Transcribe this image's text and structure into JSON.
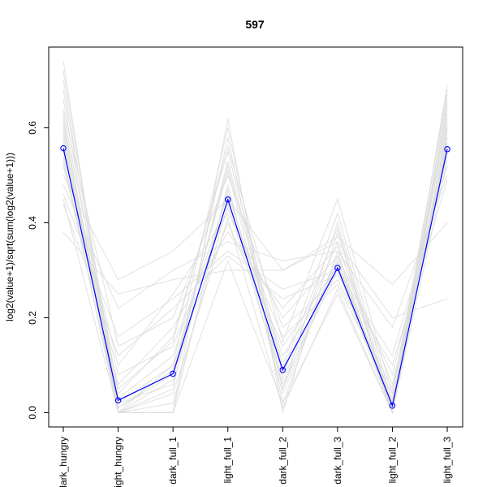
{
  "chart_data": {
    "type": "line",
    "title": "597",
    "xlabel": "",
    "ylabel": "log2(value+1)/sqrt(sum(log2(value+1)))",
    "categories": [
      "dark_hungry",
      "light_hungry",
      "dark_full_1",
      "light_full_1",
      "dark_full_2",
      "dark_full_3",
      "light_full_2",
      "light_full_3"
    ],
    "ylim": [
      -0.03,
      0.77
    ],
    "yticks": [
      0.0,
      0.2,
      0.4,
      0.6
    ],
    "ytick_labels": [
      "0.0",
      "0.2",
      "0.4",
      "0.6"
    ],
    "grid": false,
    "highlight_color": "#0000ff",
    "background_line_color": "#dcdcdc",
    "highlight": {
      "values": [
        0.557,
        0.026,
        0.082,
        0.449,
        0.09,
        0.305,
        0.015,
        0.555
      ]
    },
    "background_series": [
      {
        "values": [
          0.74,
          0.0,
          0.0,
          0.62,
          0.0,
          0.38,
          0.0,
          0.69
        ]
      },
      {
        "values": [
          0.72,
          0.02,
          0.1,
          0.6,
          0.05,
          0.4,
          0.01,
          0.68
        ]
      },
      {
        "values": [
          0.7,
          0.0,
          0.05,
          0.58,
          0.02,
          0.34,
          0.0,
          0.66
        ]
      },
      {
        "values": [
          0.68,
          0.04,
          0.16,
          0.55,
          0.1,
          0.42,
          0.02,
          0.65
        ]
      },
      {
        "values": [
          0.66,
          0.01,
          0.08,
          0.52,
          0.08,
          0.36,
          0.01,
          0.64
        ]
      },
      {
        "values": [
          0.64,
          0.14,
          0.2,
          0.5,
          0.18,
          0.28,
          0.05,
          0.62
        ]
      },
      {
        "values": [
          0.62,
          0.0,
          0.0,
          0.48,
          0.04,
          0.32,
          0.0,
          0.6
        ]
      },
      {
        "values": [
          0.6,
          0.03,
          0.12,
          0.46,
          0.12,
          0.3,
          0.02,
          0.59
        ]
      },
      {
        "values": [
          0.58,
          0.0,
          0.02,
          0.44,
          0.06,
          0.3,
          0.0,
          0.58
        ]
      },
      {
        "values": [
          0.56,
          0.1,
          0.25,
          0.42,
          0.2,
          0.33,
          0.08,
          0.56
        ]
      },
      {
        "values": [
          0.54,
          0.0,
          0.1,
          0.4,
          0.14,
          0.31,
          0.03,
          0.55
        ]
      },
      {
        "values": [
          0.52,
          0.06,
          0.18,
          0.38,
          0.22,
          0.35,
          0.06,
          0.54
        ]
      },
      {
        "values": [
          0.5,
          0.28,
          0.34,
          0.45,
          0.3,
          0.37,
          0.27,
          0.4
        ]
      },
      {
        "values": [
          0.48,
          0.22,
          0.3,
          0.36,
          0.32,
          0.34,
          0.18,
          0.5
        ]
      },
      {
        "values": [
          0.46,
          0.16,
          0.24,
          0.34,
          0.26,
          0.3,
          0.12,
          0.52
        ]
      },
      {
        "values": [
          0.45,
          0.0,
          0.0,
          0.32,
          0.02,
          0.25,
          0.0,
          0.53
        ]
      },
      {
        "values": [
          0.44,
          0.12,
          0.22,
          0.33,
          0.24,
          0.29,
          0.1,
          0.49
        ]
      },
      {
        "values": [
          0.38,
          0.25,
          0.28,
          0.3,
          0.3,
          0.36,
          0.2,
          0.24
        ]
      },
      {
        "values": [
          0.63,
          0.05,
          0.15,
          0.56,
          0.15,
          0.45,
          0.04,
          0.67
        ]
      },
      {
        "values": [
          0.61,
          0.0,
          0.07,
          0.53,
          0.09,
          0.39,
          0.0,
          0.63
        ]
      },
      {
        "values": [
          0.57,
          0.02,
          0.06,
          0.47,
          0.07,
          0.32,
          0.01,
          0.57
        ]
      },
      {
        "values": [
          0.55,
          0.08,
          0.14,
          0.43,
          0.16,
          0.27,
          0.04,
          0.61
        ]
      },
      {
        "values": [
          0.53,
          0.0,
          0.04,
          0.41,
          0.01,
          0.26,
          0.0,
          0.58
        ]
      },
      {
        "values": [
          0.59,
          0.01,
          0.09,
          0.51,
          0.05,
          0.33,
          0.01,
          0.6
        ]
      }
    ]
  }
}
